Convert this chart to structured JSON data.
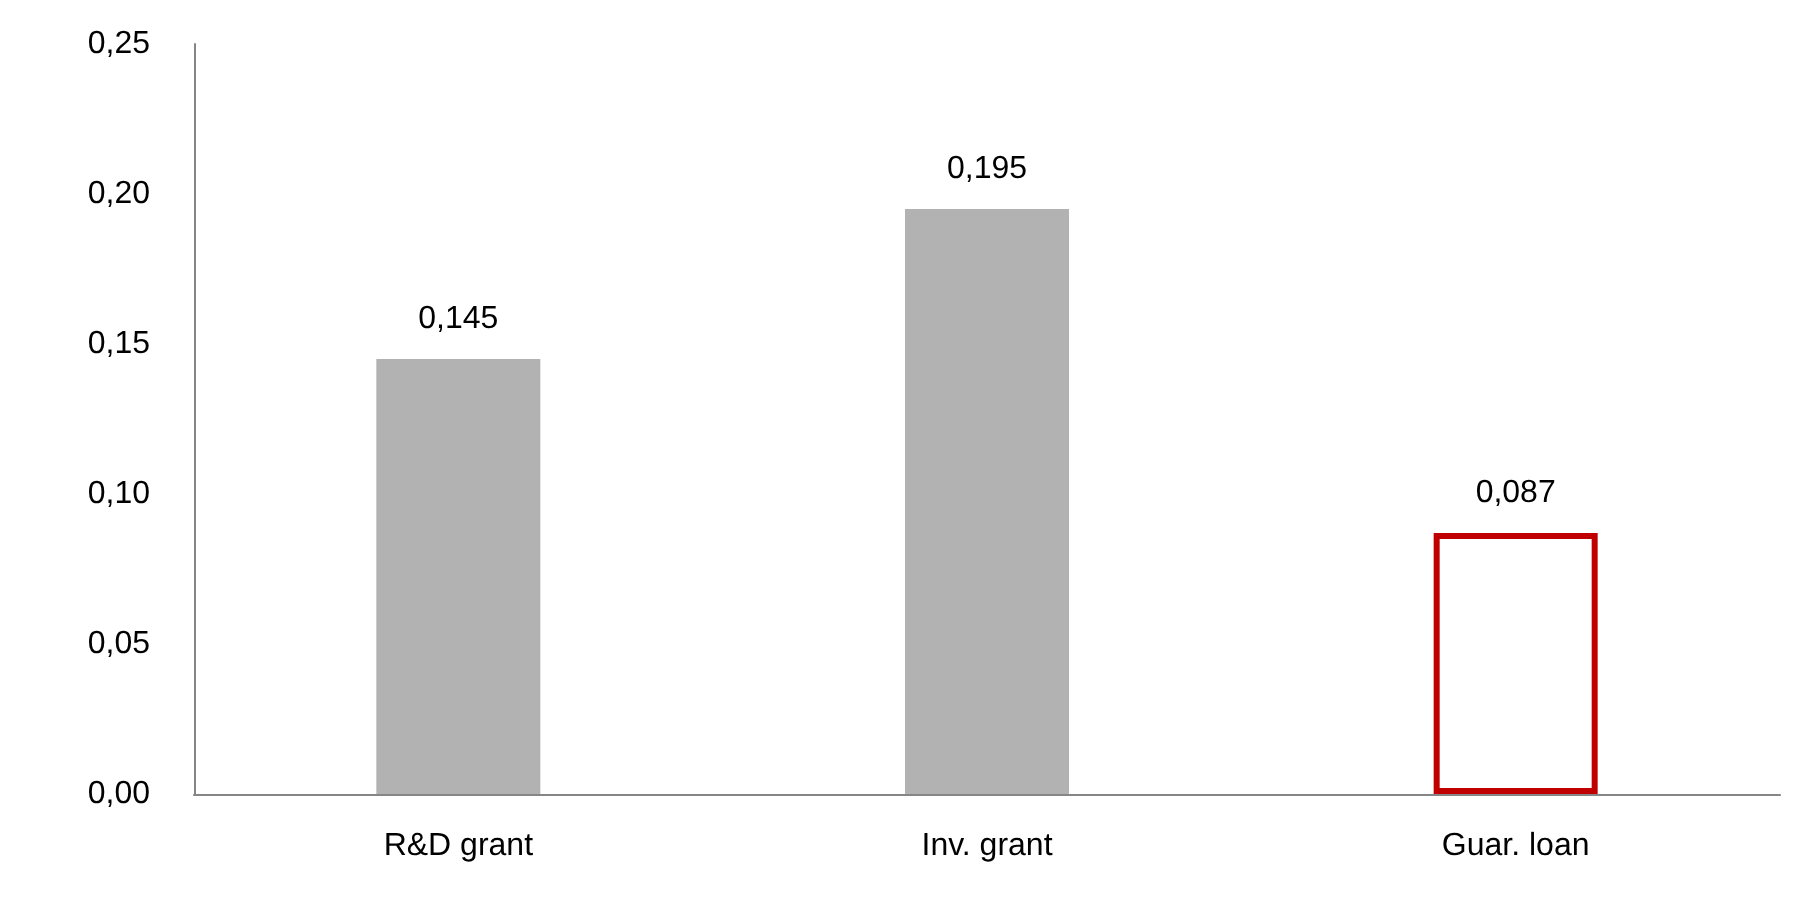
{
  "chart_data": {
    "type": "bar",
    "categories": [
      "R&D grant",
      "Inv. grant",
      "Guar. loan"
    ],
    "values": [
      0.145,
      0.195,
      0.087
    ],
    "colors": [
      "#b2b2b2",
      "#b2b2b2",
      "#c00000"
    ],
    "value_labels": [
      "0,145",
      "0,195",
      "0,087"
    ],
    "ylim": [
      0,
      0.25
    ],
    "yticks": [
      {
        "value": 0,
        "label": "0,00"
      },
      {
        "value": 0.05,
        "label": "0,05"
      },
      {
        "value": 0.1,
        "label": "0,10"
      },
      {
        "value": 0.15,
        "label": "0,15"
      },
      {
        "value": 0.2,
        "label": "0,20"
      },
      {
        "value": 0.25,
        "label": "0,25"
      }
    ],
    "grid": false
  }
}
